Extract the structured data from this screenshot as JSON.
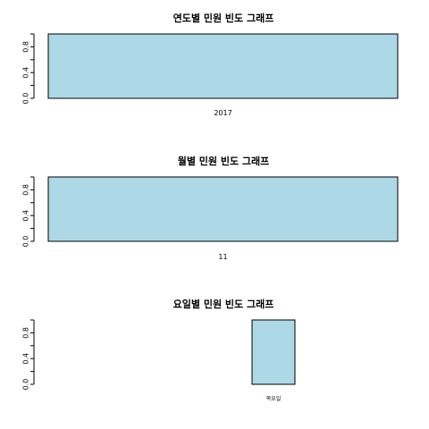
{
  "chart_data": [
    {
      "type": "bar",
      "title": "연도별 민원 빈도 그래프",
      "categories": [
        "2017"
      ],
      "values": [
        1
      ],
      "ylim": [
        0,
        1
      ],
      "yticks": [
        "0.0",
        "0.4",
        "0.8"
      ],
      "bar_color": "#add8e6"
    },
    {
      "type": "bar",
      "title": "월별 민원 빈도 그래프",
      "categories": [
        "11"
      ],
      "values": [
        1
      ],
      "ylim": [
        0,
        1
      ],
      "yticks": [
        "0.0",
        "0.4",
        "0.8"
      ],
      "bar_color": "#add8e6"
    },
    {
      "type": "bar",
      "title": "요일별 민원 빈도 그래프",
      "categories": [
        "",
        "",
        "",
        "",
        "",
        "목요일",
        "",
        ""
      ],
      "values": [
        0,
        0,
        0,
        0,
        0,
        1,
        0,
        0
      ],
      "ylim": [
        0,
        1
      ],
      "yticks": [
        "0.0",
        "0.4",
        "0.8"
      ],
      "bar_color": "#add8e6"
    }
  ]
}
